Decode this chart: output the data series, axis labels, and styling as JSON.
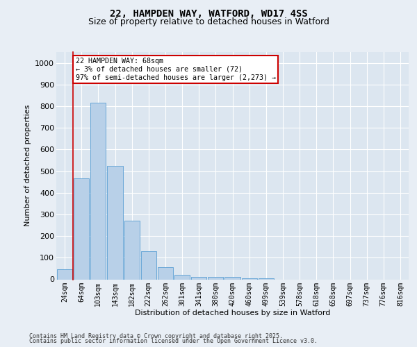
{
  "title_line1": "22, HAMPDEN WAY, WATFORD, WD17 4SS",
  "title_line2": "Size of property relative to detached houses in Watford",
  "xlabel": "Distribution of detached houses by size in Watford",
  "ylabel": "Number of detached properties",
  "categories": [
    "24sqm",
    "64sqm",
    "103sqm",
    "143sqm",
    "182sqm",
    "222sqm",
    "262sqm",
    "301sqm",
    "341sqm",
    "380sqm",
    "420sqm",
    "460sqm",
    "499sqm",
    "539sqm",
    "578sqm",
    "618sqm",
    "658sqm",
    "697sqm",
    "737sqm",
    "776sqm",
    "816sqm"
  ],
  "values": [
    45,
    465,
    815,
    525,
    270,
    130,
    55,
    20,
    10,
    10,
    10,
    5,
    5,
    0,
    0,
    0,
    0,
    0,
    0,
    0,
    0
  ],
  "bar_color": "#b8d0e8",
  "bar_edge_color": "#5a9fd4",
  "bg_color": "#e8eef5",
  "plot_bg_color": "#dce6f0",
  "grid_color": "#ffffff",
  "annotation_box_color": "#cc0000",
  "property_line_color": "#cc0000",
  "property_line_x": 0.5,
  "ylim": [
    0,
    1050
  ],
  "yticks": [
    0,
    100,
    200,
    300,
    400,
    500,
    600,
    700,
    800,
    900,
    1000
  ],
  "annotation_text": "22 HAMPDEN WAY: 68sqm\n← 3% of detached houses are smaller (72)\n97% of semi-detached houses are larger (2,273) →",
  "footer_line1": "Contains HM Land Registry data © Crown copyright and database right 2025.",
  "footer_line2": "Contains public sector information licensed under the Open Government Licence v3.0.",
  "title_fontsize": 10,
  "subtitle_fontsize": 9,
  "footer_fontsize": 6,
  "tick_fontsize": 7,
  "axis_label_fontsize": 8
}
